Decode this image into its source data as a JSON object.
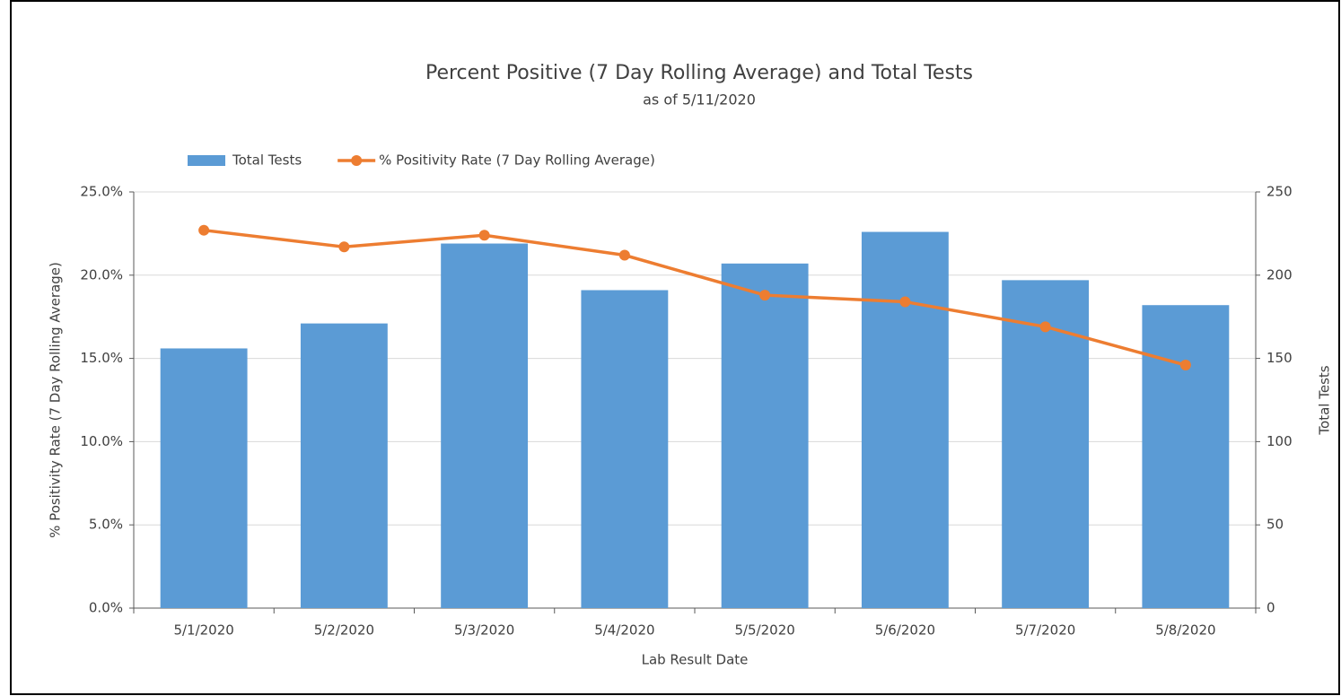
{
  "chart_data": {
    "type": "combo",
    "title": "Percent Positive (7 Day Rolling Average) and Total Tests",
    "subtitle": "as of 5/11/2020",
    "x_label": "Lab Result Date",
    "y_label": "% Positivity Rate (7 Day Rolling Average)",
    "y2_label": "Total Tests",
    "categories": [
      "5/1/2020",
      "5/2/2020",
      "5/3/2020",
      "5/4/2020",
      "5/5/2020",
      "5/6/2020",
      "5/7/2020",
      "5/8/2020"
    ],
    "series": [
      {
        "name": "Total Tests",
        "type": "bar",
        "axis": "y2",
        "color": "#5b9bd5",
        "values": [
          156,
          171,
          219,
          191,
          207,
          226,
          197,
          182
        ]
      },
      {
        "name": "% Positivity Rate (7 Day Rolling Average)",
        "type": "line",
        "axis": "y",
        "color": "#ed7d31",
        "values": [
          22.7,
          21.7,
          22.4,
          21.2,
          18.8,
          18.4,
          16.9,
          14.6
        ]
      }
    ],
    "ylim": [
      0,
      25
    ],
    "yticks": [
      {
        "value": 0,
        "label": "0.0%"
      },
      {
        "value": 5,
        "label": "5.0%"
      },
      {
        "value": 10,
        "label": "10.0%"
      },
      {
        "value": 15,
        "label": "15.0%"
      },
      {
        "value": 20,
        "label": "20.0%"
      },
      {
        "value": 25,
        "label": "25.0%"
      }
    ],
    "y2lim": [
      0,
      250
    ],
    "y2ticks": [
      0,
      50,
      100,
      150,
      200,
      250
    ],
    "grid": true,
    "legend": "top"
  }
}
